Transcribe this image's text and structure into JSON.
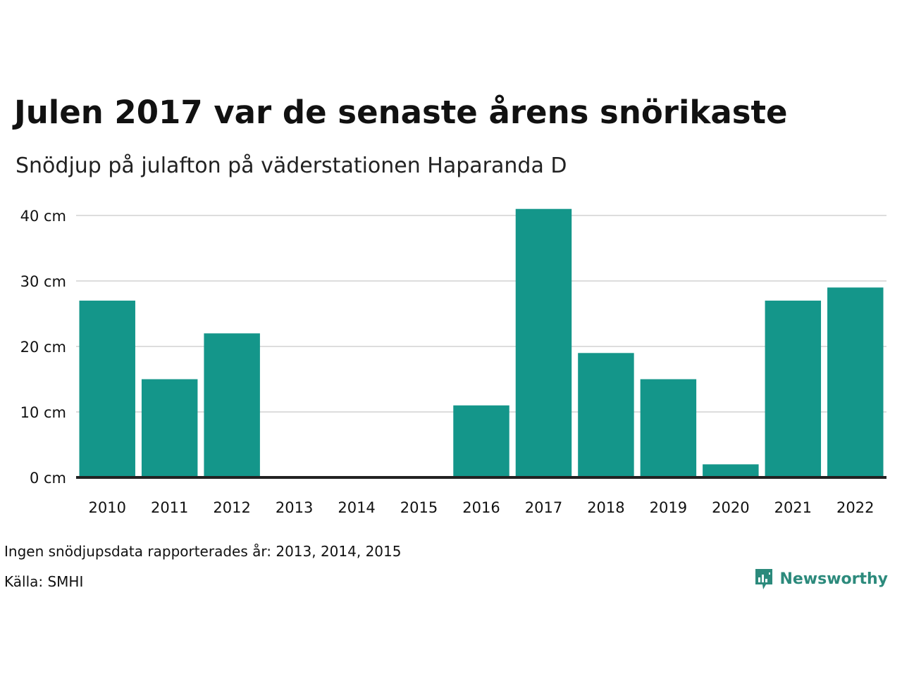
{
  "header": {
    "title": "Julen 2017 var de senaste årens snörikaste",
    "subtitle": "Snödjup på julafton på väderstationen Haparanda D"
  },
  "footer": {
    "note": "Ingen snödjupsdata rapporterades år: 2013, 2014, 2015",
    "source": "Källa: SMHI",
    "brand": "Newsworthy"
  },
  "colors": {
    "bar": "#14968a",
    "grid": "#dddddd",
    "baseline": "#222222",
    "brand": "#2c8a7c"
  },
  "chart_data": {
    "type": "bar",
    "title": "Julen 2017 var de senaste årens snörikaste",
    "subtitle": "Snödjup på julafton på väderstationen Haparanda D",
    "xlabel": "",
    "ylabel": "",
    "unit": "cm",
    "categories": [
      "2010",
      "2011",
      "2012",
      "2013",
      "2014",
      "2015",
      "2016",
      "2017",
      "2018",
      "2019",
      "2020",
      "2021",
      "2022"
    ],
    "values": [
      27,
      15,
      22,
      null,
      null,
      null,
      11,
      41,
      19,
      15,
      2,
      27,
      29
    ],
    "ylim": [
      0,
      40
    ],
    "yticks": [
      0,
      10,
      20,
      30,
      40
    ],
    "ytick_labels": [
      "0 cm",
      "10 cm",
      "20 cm",
      "30 cm",
      "40 cm"
    ],
    "grid": true,
    "legend": "none"
  }
}
